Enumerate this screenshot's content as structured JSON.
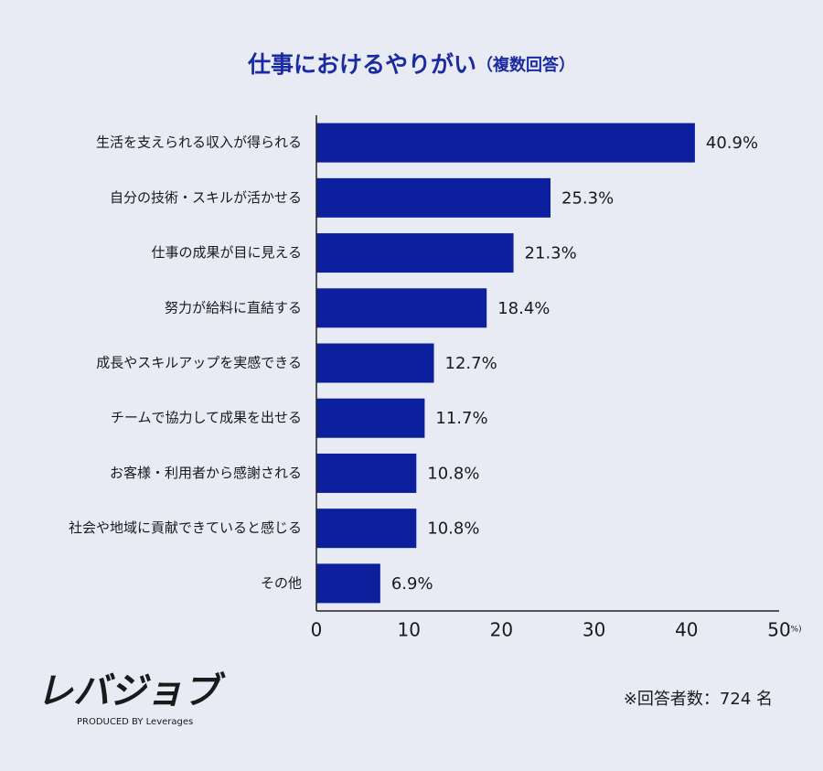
{
  "chart_data": {
    "type": "bar",
    "orientation": "horizontal",
    "title": "仕事におけるやりがい",
    "subtitle": "（複数回答）",
    "categories": [
      "生活を支えられる収入が得られる",
      "自分の技術・スキルが活かせる",
      "仕事の成果が目に見える",
      "努力が給料に直結する",
      "成長やスキルアップを実感できる",
      "チームで協力して成果を出せる",
      "お客様・利用者から感謝される",
      "社会や地域に貢献できていると感じる",
      "その他"
    ],
    "values": [
      40.9,
      25.3,
      21.3,
      18.4,
      12.7,
      11.7,
      10.8,
      10.8,
      6.9
    ],
    "value_labels": [
      "40.9%",
      "25.3%",
      "21.3%",
      "18.4%",
      "12.7%",
      "11.7%",
      "10.8%",
      "10.8%",
      "6.9%"
    ],
    "color": "#0c1f9c",
    "xlim": [
      0,
      50
    ],
    "xticks": [
      0,
      10,
      20,
      30,
      40,
      50
    ],
    "x_unit": "(%)",
    "grid": false
  },
  "footer": {
    "logo": "レバジョブ",
    "tagline": "PRODUCED BY Leverages",
    "note": "※回答者数：724 名"
  }
}
